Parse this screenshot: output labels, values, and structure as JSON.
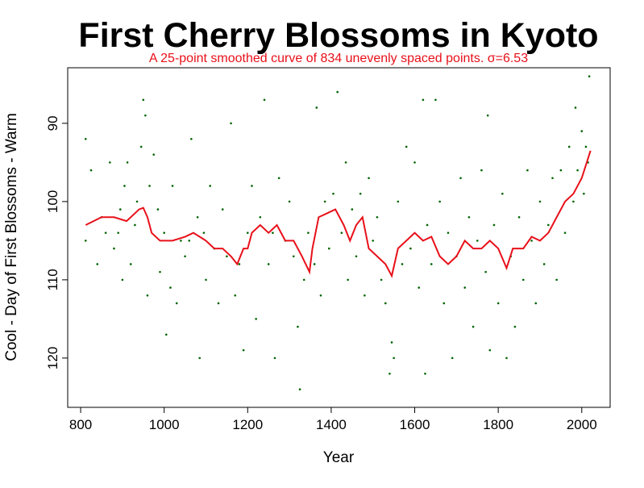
{
  "chart_data": {
    "type": "scatter",
    "title": "First Cherry Blossoms in Kyoto",
    "subtitle": "A 25-point smoothed curve of 834 unevenly spaced points.  σ=6.53",
    "x_label": "Year",
    "y_label": "Cool - Day of First Blossoms - Warm",
    "xlim": [
      769,
      2068
    ],
    "ylim": [
      126.3,
      82.9
    ],
    "xticks": [
      800,
      1000,
      1200,
      1400,
      1600,
      1800,
      2000
    ],
    "yticks": [
      90,
      100,
      110,
      120
    ],
    "series": [
      {
        "type": "scatter",
        "color": "#006400",
        "x": [
          812,
          812,
          825,
          840,
          850,
          860,
          870,
          880,
          890,
          895,
          900,
          905,
          912,
          920,
          930,
          935,
          945,
          950,
          955,
          960,
          965,
          975,
          985,
          990,
          1000,
          1005,
          1015,
          1020,
          1030,
          1040,
          1050,
          1060,
          1065,
          1080,
          1085,
          1095,
          1100,
          1110,
          1120,
          1130,
          1140,
          1150,
          1160,
          1170,
          1180,
          1190,
          1200,
          1210,
          1220,
          1230,
          1240,
          1250,
          1260,
          1265,
          1275,
          1290,
          1300,
          1310,
          1320,
          1325,
          1335,
          1345,
          1360,
          1365,
          1375,
          1385,
          1395,
          1405,
          1415,
          1425,
          1435,
          1440,
          1450,
          1460,
          1470,
          1480,
          1490,
          1500,
          1510,
          1520,
          1530,
          1540,
          1545,
          1550,
          1560,
          1570,
          1580,
          1590,
          1600,
          1610,
          1620,
          1625,
          1630,
          1640,
          1650,
          1660,
          1670,
          1680,
          1690,
          1700,
          1710,
          1720,
          1730,
          1740,
          1750,
          1760,
          1770,
          1775,
          1780,
          1790,
          1800,
          1810,
          1820,
          1830,
          1840,
          1850,
          1860,
          1870,
          1880,
          1890,
          1900,
          1910,
          1920,
          1930,
          1940,
          1950,
          1960,
          1970,
          1980,
          1985,
          1990,
          2000,
          2005,
          2010,
          2015,
          2018
        ],
        "values": [
          92,
          105,
          96,
          108,
          102,
          104,
          95,
          106,
          104,
          101,
          110,
          98,
          95,
          108,
          103,
          100,
          93,
          87,
          89,
          112,
          98,
          94,
          101,
          109,
          104,
          117,
          111,
          98,
          113,
          105,
          107,
          105,
          92,
          102,
          120,
          104,
          110,
          98,
          106,
          113,
          101,
          107,
          90,
          112,
          108,
          119,
          104,
          98,
          115,
          102,
          87,
          108,
          104,
          120,
          97,
          105,
          100,
          107,
          116,
          124,
          110,
          104,
          108,
          88,
          112,
          100,
          106,
          99,
          86,
          104,
          95,
          110,
          101,
          107,
          99,
          112,
          97,
          105,
          102,
          110,
          113,
          122,
          118,
          120,
          100,
          108,
          93,
          106,
          95,
          111,
          87,
          122,
          103,
          108,
          87,
          100,
          113,
          104,
          120,
          107,
          97,
          111,
          102,
          116,
          105,
          96,
          109,
          89,
          119,
          103,
          113,
          99,
          120,
          107,
          116,
          102,
          110,
          96,
          105,
          113,
          100,
          108,
          103,
          97,
          110,
          96,
          104,
          93,
          100,
          88,
          96,
          91,
          99,
          93,
          95,
          84
        ]
      },
      {
        "type": "line",
        "color": "#e8101a",
        "x": [
          812,
          850,
          880,
          910,
          940,
          950,
          960,
          970,
          990,
          1020,
          1050,
          1070,
          1100,
          1120,
          1140,
          1160,
          1175,
          1190,
          1200,
          1210,
          1230,
          1250,
          1270,
          1290,
          1310,
          1330,
          1348,
          1355,
          1370,
          1390,
          1410,
          1430,
          1445,
          1460,
          1475,
          1490,
          1510,
          1530,
          1545,
          1560,
          1580,
          1600,
          1620,
          1640,
          1660,
          1680,
          1700,
          1720,
          1740,
          1760,
          1780,
          1800,
          1820,
          1835,
          1860,
          1880,
          1900,
          1920,
          1940,
          1960,
          1980,
          2000,
          2021
        ],
        "values": [
          103,
          102,
          102,
          102.5,
          101,
          100.8,
          102,
          104,
          105,
          105,
          104.5,
          104,
          105,
          106,
          106,
          107,
          108,
          106,
          106,
          104,
          103,
          104,
          103,
          105,
          105,
          107,
          109,
          106,
          102,
          101.5,
          101,
          103,
          105,
          103,
          102,
          106,
          107,
          108,
          109.5,
          106,
          105,
          104,
          105,
          104.5,
          107,
          108,
          107,
          105,
          106,
          106,
          105,
          106,
          108.5,
          106,
          106,
          104.5,
          105,
          104,
          102,
          100,
          99,
          97,
          93.5
        ]
      }
    ]
  }
}
